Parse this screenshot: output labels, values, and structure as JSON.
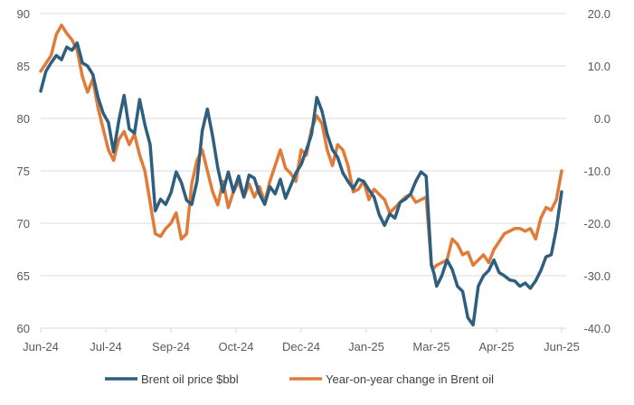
{
  "chart_data": {
    "type": "line",
    "title": "",
    "xlabel": "",
    "ylabel": "",
    "y2label": "",
    "grid": true,
    "legend_position": "bottom",
    "x_ticks": [
      "Jun-24",
      "Jul-24",
      "Sep-24",
      "Oct-24",
      "Dec-24",
      "Jan-25",
      "Mar-25",
      "Apr-25",
      "Jun-25"
    ],
    "y_left": {
      "ticks": [
        "60",
        "65",
        "70",
        "75",
        "80",
        "85",
        "90"
      ],
      "range": [
        60,
        90
      ]
    },
    "y_right": {
      "ticks": [
        "-40.0",
        "-30.0",
        "-20.0",
        "-10.0",
        "0.0",
        "10.0",
        "20.0"
      ],
      "range": [
        -40,
        20
      ]
    },
    "series": [
      {
        "name": "Brent oil price $bbl",
        "axis": "left",
        "color": "#2E5F7F",
        "x_fraction": [
          0.0,
          0.01,
          0.02,
          0.03,
          0.04,
          0.05,
          0.06,
          0.07,
          0.08,
          0.09,
          0.1,
          0.11,
          0.12,
          0.13,
          0.14,
          0.15,
          0.16,
          0.17,
          0.18,
          0.19,
          0.2,
          0.21,
          0.22,
          0.23,
          0.24,
          0.25,
          0.26,
          0.27,
          0.28,
          0.29,
          0.3,
          0.31,
          0.32,
          0.33,
          0.34,
          0.35,
          0.36,
          0.37,
          0.38,
          0.39,
          0.4,
          0.41,
          0.42,
          0.43,
          0.44,
          0.45,
          0.46,
          0.47,
          0.48,
          0.49,
          0.5,
          0.51,
          0.52,
          0.53,
          0.54,
          0.55,
          0.56,
          0.57,
          0.58,
          0.59,
          0.6,
          0.61,
          0.62,
          0.63,
          0.64,
          0.65,
          0.66,
          0.67,
          0.68,
          0.69,
          0.7,
          0.71,
          0.72,
          0.73,
          0.74,
          0.75,
          0.755,
          0.76,
          0.77,
          0.78,
          0.79,
          0.8,
          0.81,
          0.82,
          0.83,
          0.84,
          0.85,
          0.86,
          0.87,
          0.88,
          0.89,
          0.9,
          0.91,
          0.92,
          0.93,
          0.94,
          0.95,
          0.96,
          0.97,
          0.98,
          0.99,
          1.0
        ],
        "values": [
          82.6,
          84.5,
          85.3,
          86.0,
          85.6,
          86.8,
          86.5,
          87.2,
          85.3,
          85.0,
          84.2,
          82.0,
          80.5,
          79.6,
          76.8,
          79.8,
          82.2,
          79.0,
          78.6,
          81.8,
          79.4,
          77.5,
          71.2,
          72.3,
          71.8,
          72.9,
          74.9,
          73.9,
          72.2,
          71.8,
          74.0,
          78.8,
          80.9,
          78.3,
          75.3,
          73.0,
          74.9,
          73.0,
          74.5,
          72.5,
          74.6,
          74.3,
          72.8,
          71.8,
          73.5,
          72.8,
          74.2,
          72.4,
          73.6,
          74.8,
          75.6,
          77.0,
          78.5,
          82.0,
          80.7,
          78.5,
          77.0,
          76.3,
          74.8,
          74.0,
          73.3,
          74.2,
          74.0,
          73.2,
          72.5,
          70.8,
          69.8,
          70.9,
          70.5,
          72.0,
          72.3,
          72.8,
          74.0,
          74.9,
          74.5,
          66.0,
          65.2,
          64.0,
          65.0,
          66.5,
          65.6,
          64.0,
          63.5,
          61.0,
          60.3,
          64.0,
          65.0,
          65.5,
          66.5,
          65.3,
          65.0,
          64.6,
          64.5,
          64.0,
          64.3,
          63.8,
          64.5,
          65.5,
          66.8,
          67.0,
          69.5,
          73.0
        ]
      },
      {
        "name": "Year-on-year change in Brent oil",
        "axis": "right",
        "color": "#E07B39",
        "x_fraction": [
          0.0,
          0.01,
          0.02,
          0.03,
          0.04,
          0.05,
          0.06,
          0.07,
          0.08,
          0.09,
          0.1,
          0.11,
          0.12,
          0.13,
          0.14,
          0.15,
          0.16,
          0.17,
          0.18,
          0.19,
          0.2,
          0.21,
          0.22,
          0.23,
          0.24,
          0.25,
          0.26,
          0.27,
          0.28,
          0.29,
          0.3,
          0.31,
          0.32,
          0.33,
          0.34,
          0.35,
          0.36,
          0.37,
          0.38,
          0.39,
          0.4,
          0.41,
          0.42,
          0.43,
          0.44,
          0.45,
          0.46,
          0.47,
          0.48,
          0.49,
          0.5,
          0.51,
          0.52,
          0.53,
          0.54,
          0.55,
          0.56,
          0.57,
          0.58,
          0.59,
          0.6,
          0.61,
          0.62,
          0.63,
          0.64,
          0.65,
          0.66,
          0.67,
          0.68,
          0.69,
          0.7,
          0.71,
          0.72,
          0.73,
          0.74,
          0.75,
          0.755,
          0.76,
          0.77,
          0.78,
          0.79,
          0.8,
          0.81,
          0.82,
          0.83,
          0.84,
          0.85,
          0.86,
          0.87,
          0.88,
          0.89,
          0.9,
          0.91,
          0.92,
          0.93,
          0.94,
          0.95,
          0.96,
          0.97,
          0.98,
          0.99,
          1.0
        ],
        "values": [
          9.0,
          10.5,
          12.0,
          16.0,
          17.8,
          16.2,
          15.0,
          13.0,
          8.0,
          5.0,
          7.5,
          2.0,
          -2.0,
          -6.0,
          -8.0,
          -4.0,
          -2.5,
          -5.0,
          -3.0,
          -7.0,
          -10.0,
          -16.0,
          -22.0,
          -22.5,
          -21.0,
          -20.0,
          -18.0,
          -23.0,
          -22.0,
          -12.5,
          -8.0,
          -6.0,
          -10.0,
          -14.0,
          -16.5,
          -12.0,
          -17.0,
          -14.0,
          -12.0,
          -15.0,
          -12.5,
          -15.0,
          -13.0,
          -16.0,
          -12.0,
          -9.0,
          -6.0,
          -9.5,
          -10.5,
          -12.0,
          -6.0,
          -7.0,
          -2.0,
          0.5,
          -1.0,
          -6.0,
          -9.0,
          -5.0,
          -6.0,
          -9.0,
          -14.0,
          -13.5,
          -12.0,
          -15.5,
          -13.5,
          -14.5,
          -15.5,
          -18.0,
          -17.0,
          -16.0,
          -15.0,
          -14.5,
          -16.0,
          -15.5,
          -15.0,
          -28.0,
          -28.5,
          -28.0,
          -27.5,
          -27.0,
          -23.0,
          -24.0,
          -26.0,
          -25.5,
          -28.0,
          -27.0,
          -26.0,
          -27.5,
          -25.0,
          -23.5,
          -22.0,
          -21.5,
          -21.0,
          -21.0,
          -21.5,
          -21.0,
          -23.0,
          -19.0,
          -17.0,
          -17.5,
          -15.5,
          -10.0
        ]
      }
    ]
  },
  "legend": {
    "items": [
      {
        "label": "Brent oil price $bbl",
        "color": "#2E5F7F"
      },
      {
        "label": "Year-on-year change in Brent oil",
        "color": "#E07B39"
      }
    ]
  }
}
